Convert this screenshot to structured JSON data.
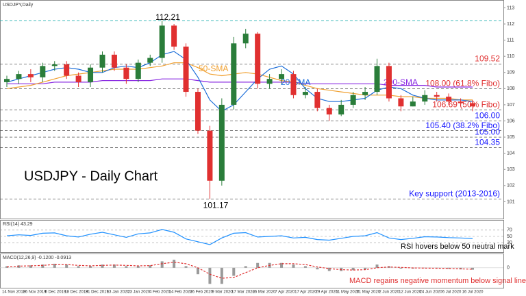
{
  "chart_data": {
    "type": "candlestick",
    "header": "USDJPY,Daily",
    "title": "USDJPY - Daily Chart",
    "up_color": "#2a7d3a",
    "down_color": "#e03030",
    "ylim": [
      100.0,
      113.4
    ],
    "yticks": [
      101,
      102,
      103,
      104,
      105,
      106,
      107,
      108,
      109,
      110,
      111,
      112,
      113
    ],
    "x_labels": [
      "14 Nov 2019",
      "26 Nov 2019",
      "6 Dec 2019",
      "18 Dec 2019",
      "31 Dec 2019",
      "13 Jan 2020",
      "23 Jan 2020",
      "4 Feb 2020",
      "14 Feb 2020",
      "26 Feb 2020",
      "9 Mar 2020",
      "17 Mar 2020",
      "26 Mar 2020",
      "7 Apr 2020",
      "17 Apr 2020",
      "29 Apr 2020",
      "11 May 2020",
      "21 May 2020",
      "2 Jun 2020",
      "12 Jun 2020",
      "24 Jun 2020",
      "6 Jul 2020",
      "16 Jul 2020"
    ],
    "open": [
      108.4,
      108.6,
      108.9,
      108.7,
      109.4,
      109.5,
      108.8,
      108.4,
      109.3,
      110.1,
      109.3,
      108.6,
      109.6,
      109.9,
      111.9,
      110.6,
      107.8,
      105.4,
      102.3,
      107.0,
      110.8,
      111.4,
      108.3,
      108.6,
      108.9,
      107.6,
      107.8,
      106.8,
      106.4,
      107.0,
      107.6,
      107.8,
      109.4,
      107.4,
      106.9,
      107.2,
      107.6,
      107.5,
      107.2,
      107.1
    ],
    "high": [
      108.8,
      109.1,
      109.2,
      109.6,
      109.7,
      109.7,
      109.0,
      109.5,
      110.3,
      110.3,
      109.5,
      109.8,
      110.1,
      112.21,
      112.0,
      110.8,
      108.0,
      105.7,
      107.4,
      111.2,
      111.7,
      111.5,
      108.9,
      109.2,
      109.1,
      108.1,
      108.0,
      107.0,
      107.3,
      107.8,
      108.1,
      109.85,
      109.6,
      107.6,
      107.5,
      107.9,
      107.8,
      107.7,
      107.4,
      107.3
    ],
    "low": [
      108.1,
      108.3,
      108.4,
      108.4,
      109.1,
      108.6,
      108.1,
      108.1,
      109.0,
      109.1,
      108.3,
      108.4,
      109.4,
      109.6,
      110.4,
      107.5,
      105.2,
      101.17,
      102.0,
      106.7,
      110.5,
      108.0,
      108.0,
      108.3,
      107.4,
      107.4,
      106.6,
      106.0,
      106.3,
      106.8,
      107.3,
      107.6,
      107.2,
      106.6,
      106.9,
      107.0,
      107.2,
      107.0,
      106.9,
      106.6
    ],
    "close": [
      108.6,
      108.9,
      108.7,
      109.4,
      109.5,
      108.8,
      108.4,
      109.3,
      110.1,
      109.3,
      108.6,
      109.6,
      109.9,
      111.9,
      110.6,
      107.8,
      105.4,
      102.3,
      107.0,
      110.8,
      111.4,
      108.3,
      108.6,
      108.9,
      107.6,
      107.8,
      106.8,
      106.4,
      107.0,
      107.6,
      107.8,
      109.4,
      107.4,
      106.9,
      107.2,
      107.6,
      107.5,
      107.2,
      107.1,
      106.9
    ],
    "series": [
      {
        "name": "200-SMA",
        "color": "#8a2be2",
        "values": [
          108.3,
          108.3,
          108.3,
          108.3,
          108.4,
          108.4,
          108.4,
          108.4,
          108.5,
          108.5,
          108.5,
          108.5,
          108.5,
          108.6,
          108.6,
          108.6,
          108.5,
          108.4,
          108.4,
          108.4,
          108.4,
          108.4,
          108.4,
          108.4,
          108.4,
          108.3,
          108.3,
          108.3,
          108.3,
          108.3,
          108.3,
          108.3,
          108.2,
          108.2,
          108.2,
          108.2,
          108.1,
          108.1,
          108.1,
          108.1
        ]
      },
      {
        "name": "50-SMA",
        "color": "#f0a030",
        "values": [
          108.0,
          108.1,
          108.2,
          108.4,
          108.6,
          108.8,
          108.9,
          109.0,
          109.1,
          109.2,
          109.2,
          109.2,
          109.3,
          109.4,
          109.6,
          109.6,
          109.3,
          108.9,
          108.8,
          108.9,
          109.0,
          108.9,
          108.7,
          108.5,
          108.4,
          108.2,
          108.0,
          107.9,
          107.8,
          107.7,
          107.6,
          107.6,
          107.6,
          107.5,
          107.5,
          107.4,
          107.4,
          107.4,
          107.3,
          107.3
        ]
      },
      {
        "name": "20-SMA",
        "color": "#1e6fd9",
        "values": [
          108.4,
          108.6,
          108.8,
          109.0,
          109.2,
          109.3,
          109.2,
          109.0,
          109.0,
          109.3,
          109.4,
          109.3,
          109.6,
          110.1,
          110.3,
          109.8,
          108.7,
          107.3,
          106.6,
          107.0,
          107.8,
          108.6,
          109.2,
          109.4,
          108.9,
          108.0,
          107.4,
          107.2,
          107.2,
          107.3,
          107.4,
          107.9,
          108.1,
          108.0,
          107.6,
          107.4,
          107.3,
          107.3,
          107.3,
          107.2
        ]
      }
    ],
    "levels": [
      {
        "value": 112.21,
        "label": "112.21",
        "color": "#20b0b0"
      },
      {
        "value": 109.52,
        "label": "109.52",
        "color": "#e03030"
      },
      {
        "value": 108.0,
        "label": "108.00 (61.8% Fibo)",
        "color": "#e03030"
      },
      {
        "value": 106.69,
        "label": "106.69 (50% Fibo)",
        "color": "#e03030"
      },
      {
        "value": 106.0,
        "label": "106.00",
        "color": "#1a1aff"
      },
      {
        "value": 105.4,
        "label": "105.40 (38.2% Fibo)",
        "color": "#1a1aff"
      },
      {
        "value": 105.0,
        "label": "105.00",
        "color": "#1a1aff"
      },
      {
        "value": 104.35,
        "label": "104.35",
        "color": "#1a1aff"
      },
      {
        "value": 101.17,
        "label": "Key support (2013-2016)",
        "color": "#1a1aff"
      }
    ],
    "low_label": "101.17",
    "rsi": {
      "label": "RSI(14) 43.29",
      "note": "RSI hovers below 50 neutral mark",
      "color": "#1e90ff",
      "ylim": [
        0,
        100
      ],
      "yticks": [
        30,
        50,
        70
      ],
      "values": [
        52,
        55,
        53,
        60,
        61,
        52,
        48,
        57,
        63,
        55,
        47,
        58,
        61,
        72,
        63,
        42,
        33,
        24,
        45,
        60,
        62,
        48,
        50,
        52,
        45,
        47,
        40,
        38,
        44,
        50,
        52,
        62,
        45,
        40,
        44,
        49,
        48,
        46,
        45,
        43.29
      ]
    },
    "macd": {
      "label": "MACD(12,26,9) -0.1200 -0.0913",
      "note": "MACD regains negative momentum below signal line",
      "ylim": [
        -1.2,
        0.8
      ],
      "yticks": [
        0
      ],
      "histogram": [
        0.1,
        0.15,
        0.15,
        0.2,
        0.25,
        0.2,
        0.1,
        0.1,
        0.2,
        0.2,
        0.1,
        0.1,
        0.15,
        0.4,
        0.5,
        0.1,
        -0.4,
        -1.0,
        -1.0,
        -0.5,
        0.1,
        0.3,
        0.3,
        0.3,
        0.2,
        0.1,
        -0.1,
        -0.2,
        -0.2,
        -0.15,
        -0.1,
        0.2,
        0.1,
        -0.05,
        -0.05,
        -0.02,
        -0.03,
        -0.06,
        -0.1,
        -0.12
      ],
      "signal": [
        0.05,
        0.1,
        0.12,
        0.15,
        0.2,
        0.2,
        0.15,
        0.12,
        0.15,
        0.17,
        0.15,
        0.12,
        0.13,
        0.25,
        0.35,
        0.25,
        0.0,
        -0.4,
        -0.65,
        -0.6,
        -0.3,
        0.0,
        0.15,
        0.25,
        0.25,
        0.2,
        0.05,
        -0.05,
        -0.12,
        -0.14,
        -0.12,
        0.0,
        0.05,
        0.02,
        -0.01,
        -0.02,
        -0.03,
        -0.04,
        -0.07,
        -0.09
      ],
      "hist_color": "#9a9a9a",
      "signal_color": "#e03030"
    }
  }
}
